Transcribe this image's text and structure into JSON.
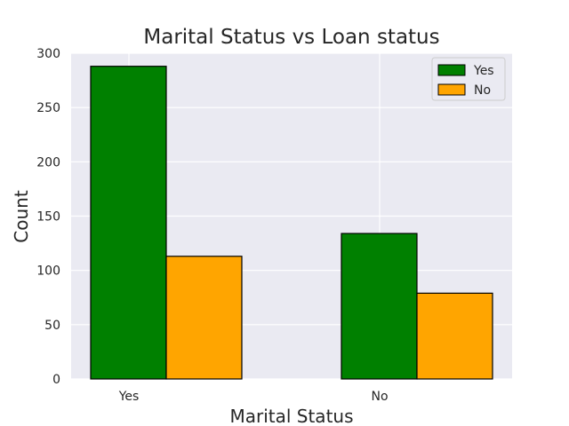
{
  "chart_data": {
    "type": "bar",
    "title": "Marital Status vs Loan status",
    "xlabel": "Marital Status",
    "ylabel": "Count",
    "categories": [
      "Yes",
      "No"
    ],
    "series": [
      {
        "name": "Yes",
        "values": [
          288,
          134
        ],
        "color": "#008000"
      },
      {
        "name": "No",
        "values": [
          113,
          79
        ],
        "color": "#FFA500"
      }
    ],
    "ylim": [
      0,
      300
    ],
    "yticks": [
      0,
      50,
      100,
      150,
      200,
      250,
      300
    ],
    "grid": true,
    "legend_position": "top-right",
    "background_color": "#EAEAF2",
    "bar_edge_color": "#000000"
  }
}
